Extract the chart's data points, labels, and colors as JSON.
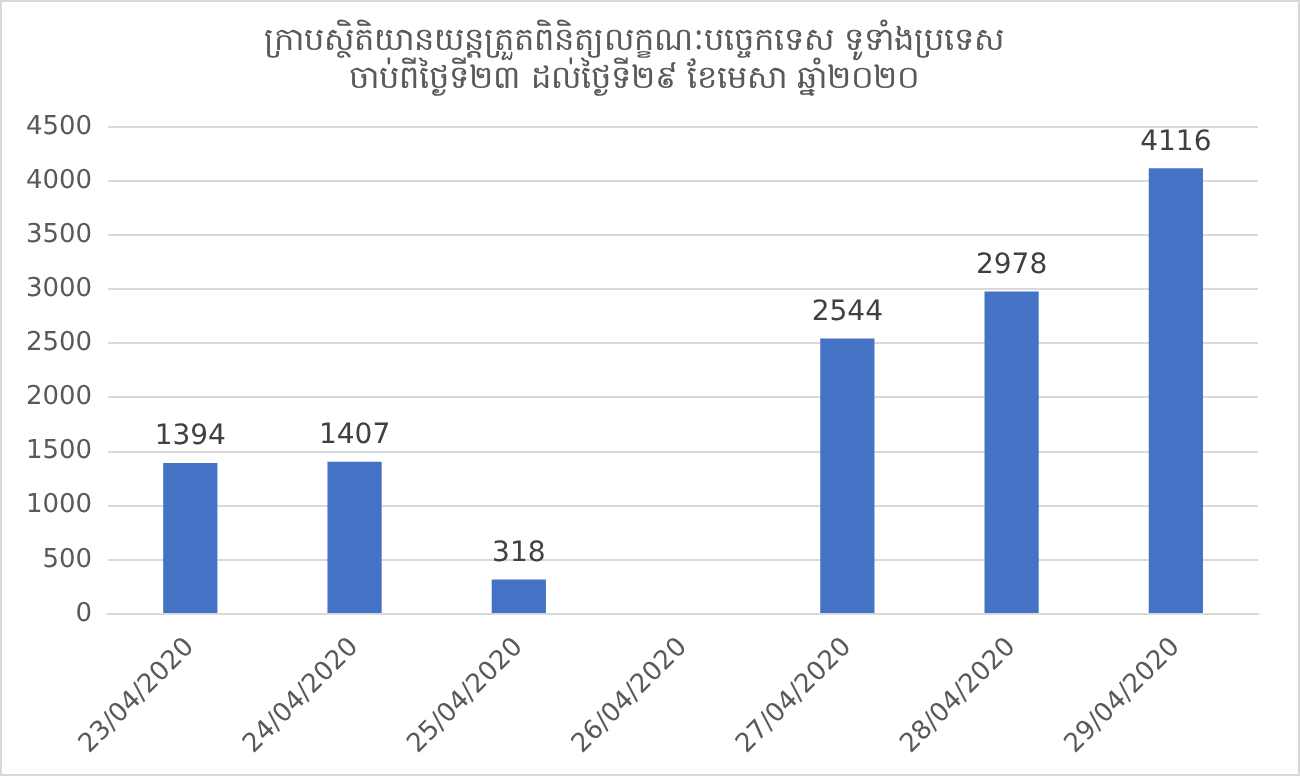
{
  "chart_data": {
    "type": "bar",
    "title": "ក្រាបស្ថិតិយានយន្តត្រួតពិនិត្យលក្ខណៈបច្ចេកទេស ទូទាំងប្រទេស",
    "subtitle": "ចាប់ពីថ្ងៃទី២៣ ដល់ថ្ងៃទី២៩ ខែមេសា ឆ្នាំ២០២០",
    "categories": [
      "23/04/2020",
      "24/04/2020",
      "25/04/2020",
      "26/04/2020",
      "27/04/2020",
      "28/04/2020",
      "29/04/2020"
    ],
    "values": [
      1394,
      1407,
      318,
      null,
      2544,
      2978,
      4116
    ],
    "color": "#4472c4",
    "ylim": [
      0,
      4500
    ],
    "yticks": [
      0,
      500,
      1000,
      1500,
      2000,
      2500,
      3000,
      3500,
      4000,
      4500
    ],
    "grid": "y",
    "data_labels": true,
    "legend": false
  }
}
